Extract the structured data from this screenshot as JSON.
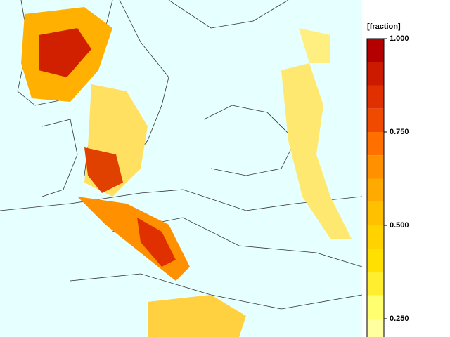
{
  "colorbar": {
    "title": "[fraction]",
    "clim": [
      0.1875,
      1.0
    ],
    "ticks": [
      {
        "value": 1.0,
        "label": "1.000"
      },
      {
        "value": 0.75,
        "label": "0.750"
      },
      {
        "value": 0.5,
        "label": "0.500"
      },
      {
        "value": 0.25,
        "label": "0.250"
      }
    ],
    "colors": [
      "#b40000",
      "#cc1a00",
      "#e03000",
      "#f04a00",
      "#ff7000",
      "#ff9000",
      "#ffaa00",
      "#ffc000",
      "#ffd200",
      "#ffe000",
      "#ffee30",
      "#ffff70",
      "#ffffa0"
    ]
  }
}
